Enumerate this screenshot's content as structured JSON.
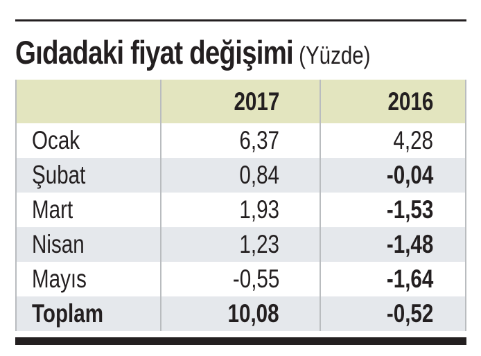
{
  "title": "Gıdadaki fiyat değişimi",
  "unit": "(Yüzde)",
  "colors": {
    "header_bg": "#e3e5bf",
    "stripe_bg": "#e5e8ec",
    "text": "#231f20"
  },
  "chart_data": {
    "type": "table",
    "title": "Gıdadaki fiyat değişimi",
    "subtitle": "(Yüzde)",
    "columns": [
      "",
      "2017",
      "2016"
    ],
    "rows": [
      {
        "label": "Ocak",
        "v2017": "6,37",
        "v2016": "4,28"
      },
      {
        "label": "Şubat",
        "v2017": "0,84",
        "v2016": "-0,04"
      },
      {
        "label": "Mart",
        "v2017": "1,93",
        "v2016": "-1,53"
      },
      {
        "label": "Nisan",
        "v2017": "1,23",
        "v2016": "-1,48"
      },
      {
        "label": "Mayıs",
        "v2017": "-0,55",
        "v2016": "-1,64"
      },
      {
        "label": "Toplam",
        "v2017": "10,08",
        "v2016": "-0,52"
      }
    ]
  }
}
